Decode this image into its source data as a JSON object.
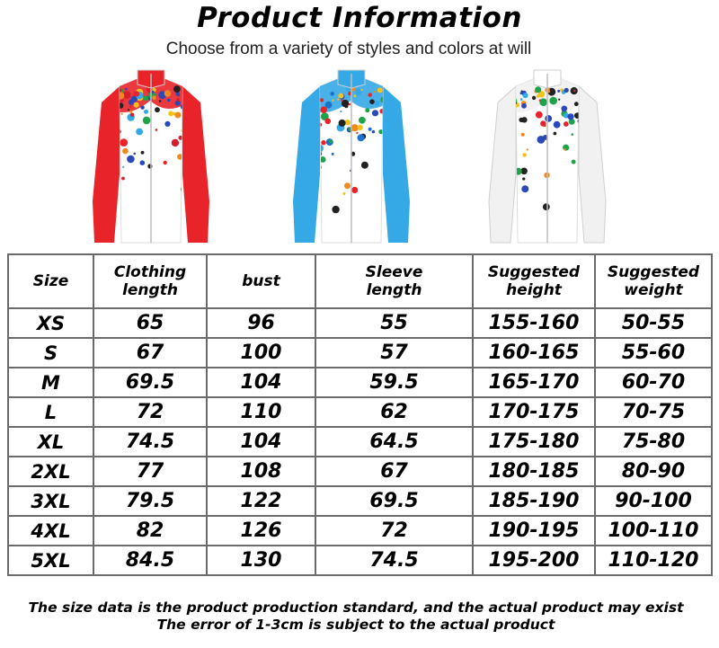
{
  "header": {
    "title": "Product Information",
    "subtitle": "Choose from a variety of styles and colors at will"
  },
  "jackets": [
    {
      "color_name": "red",
      "accent": "#e8232a",
      "splash": "#d61f2a"
    },
    {
      "color_name": "blue",
      "accent": "#35a9e6",
      "splash": "#1a73c9"
    },
    {
      "color_name": "white",
      "accent": "#f1f1f1",
      "splash": "#2a48b8"
    }
  ],
  "table": {
    "headers": [
      [
        "Size"
      ],
      [
        "Clothing",
        "length"
      ],
      [
        "bust"
      ],
      [
        "Sleeve",
        "length"
      ],
      [
        "Suggested",
        "height"
      ],
      [
        "Suggested",
        "weight"
      ]
    ],
    "rows": [
      [
        "XS",
        "65",
        "96",
        "55",
        "155-160",
        "50-55"
      ],
      [
        "S",
        "67",
        "100",
        "57",
        "160-165",
        "55-60"
      ],
      [
        "M",
        "69.5",
        "104",
        "59.5",
        "165-170",
        "60-70"
      ],
      [
        "L",
        "72",
        "110",
        "62",
        "170-175",
        "70-75"
      ],
      [
        "XL",
        "74.5",
        "104",
        "64.5",
        "175-180",
        "75-80"
      ],
      [
        "2XL",
        "77",
        "108",
        "67",
        "180-185",
        "80-90"
      ],
      [
        "3XL",
        "79.5",
        "122",
        "69.5",
        "185-190",
        "90-100"
      ],
      [
        "4XL",
        "82",
        "126",
        "72",
        "190-195",
        "100-110"
      ],
      [
        "5XL",
        "84.5",
        "130",
        "74.5",
        "195-200",
        "110-120"
      ]
    ]
  },
  "footer": {
    "line1": "The size data is the product production standard, and the actual product may exist",
    "line2": "The error of 1-3cm is subject to the actual product"
  }
}
